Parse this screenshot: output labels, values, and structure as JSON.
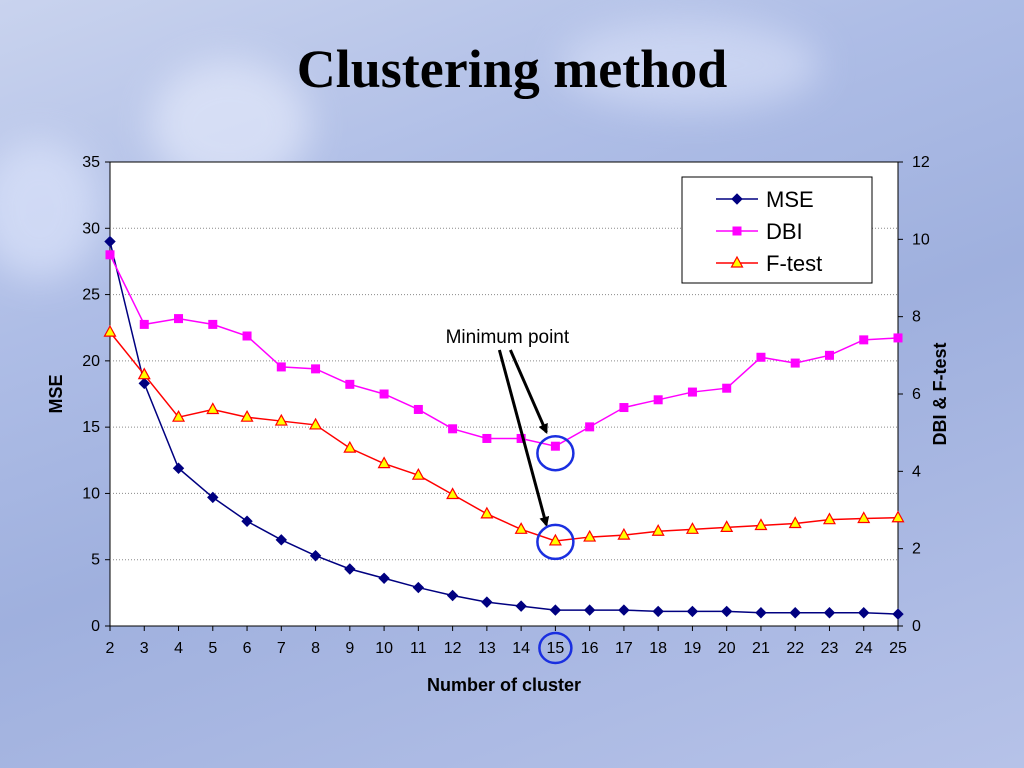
{
  "slide": {
    "title": "Clustering method"
  },
  "colors": {
    "mse": "#000080",
    "dbi": "#ff00ff",
    "ftest": "#ff0000",
    "ftest_fill": "#ffff00",
    "highlight": "#1a2fe0"
  },
  "chart_data": {
    "type": "line",
    "x": [
      2,
      3,
      4,
      5,
      6,
      7,
      8,
      9,
      10,
      11,
      12,
      13,
      14,
      15,
      16,
      17,
      18,
      19,
      20,
      21,
      22,
      23,
      24,
      25
    ],
    "xlabel": "Number of cluster",
    "ylabel_left": "MSE",
    "ylabel_right": "DBI & F-test",
    "ylim_left": [
      0,
      35
    ],
    "ylim_right": [
      0,
      12
    ],
    "yticks_left": [
      0,
      5,
      10,
      15,
      20,
      25,
      30,
      35
    ],
    "yticks_right": [
      0,
      2,
      4,
      6,
      8,
      10,
      12
    ],
    "grid": "horizontal dotted",
    "legend_position": "top-right",
    "series": [
      {
        "name": "MSE",
        "axis": "left",
        "marker": "diamond",
        "values": [
          29.0,
          18.3,
          11.9,
          9.7,
          7.9,
          6.5,
          5.3,
          4.3,
          3.6,
          2.9,
          2.3,
          1.8,
          1.5,
          1.2,
          1.2,
          1.2,
          1.1,
          1.1,
          1.1,
          1.0,
          1.0,
          1.0,
          1.0,
          0.9
        ]
      },
      {
        "name": "DBI",
        "axis": "right",
        "marker": "square",
        "values": [
          9.6,
          7.8,
          7.95,
          7.8,
          7.5,
          6.7,
          6.65,
          6.25,
          6.0,
          5.6,
          5.1,
          4.85,
          4.85,
          4.65,
          5.15,
          5.65,
          5.85,
          6.05,
          6.15,
          6.95,
          6.8,
          7.0,
          7.4,
          7.45
        ]
      },
      {
        "name": "F-test",
        "axis": "right",
        "marker": "triangle",
        "values": [
          7.6,
          6.5,
          5.4,
          5.6,
          5.4,
          5.3,
          5.2,
          4.6,
          4.2,
          3.9,
          3.4,
          2.9,
          2.5,
          2.2,
          2.3,
          2.35,
          2.45,
          2.5,
          2.55,
          2.6,
          2.65,
          2.75,
          2.78,
          2.8
        ]
      }
    ],
    "annotation": {
      "text": "Minimum point",
      "target_x": 15
    }
  }
}
